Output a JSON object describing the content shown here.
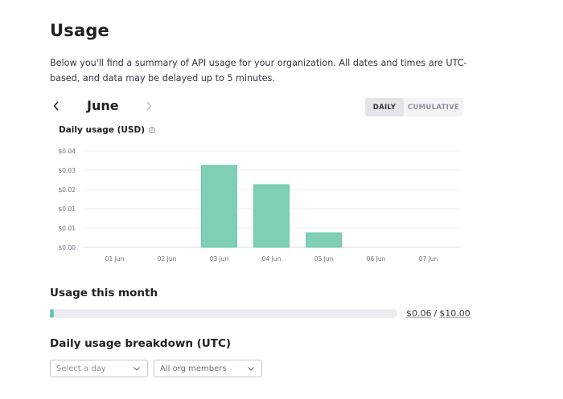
{
  "page": {
    "title": "Usage",
    "description": "Below you'll find a summary of API usage for your organization. All dates and times are UTC-based, and data may be delayed up to 5 minutes."
  },
  "month_nav": {
    "month": "June",
    "prev_icon": "chevron-left-icon",
    "next_icon": "chevron-right-icon"
  },
  "view_toggle": {
    "daily": "DAILY",
    "cumulative": "CUMULATIVE",
    "selected": "DAILY"
  },
  "chart_section": {
    "label": "Daily usage (USD)",
    "info_icon": "info-icon"
  },
  "chart_data": {
    "type": "bar",
    "categories": [
      "01 Jun",
      "02 Jun",
      "03 Jun",
      "04 Jun",
      "05 Jun",
      "06 Jun",
      "07 Jun"
    ],
    "values": [
      0,
      0,
      0.034,
      0.026,
      0.006,
      0,
      0
    ],
    "y_ticks": [
      "$0.00",
      "$0.01",
      "$0.01",
      "$0.02",
      "$0.03",
      "$0.04"
    ],
    "ylim": [
      0,
      0.04
    ],
    "grid": true,
    "bar_color": "#7fcfb6",
    "bar_border_color": "#6ac7ac"
  },
  "usage_month": {
    "title": "Usage this month",
    "used": "$0.06",
    "separator": "/",
    "limit": "$10.00",
    "fraction": 0.006,
    "accent": "#6ac7ac"
  },
  "breakdown": {
    "title": "Daily usage breakdown (UTC)",
    "day_select_placeholder": "Select a day",
    "members_select_value": "All org members"
  }
}
